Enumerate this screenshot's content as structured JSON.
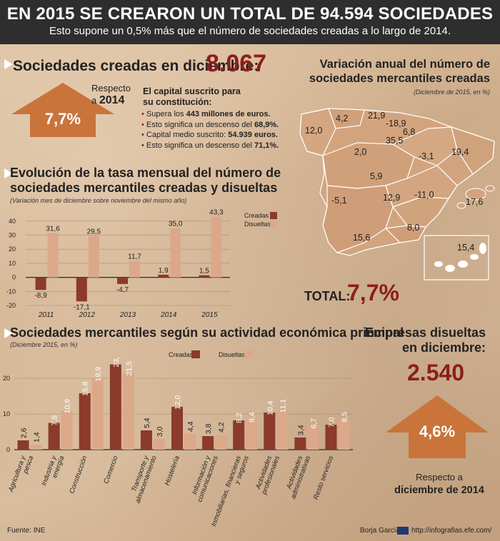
{
  "header": {
    "title": "EN 2015 SE CREARON UN TOTAL DE 94.594 SOCIEDADES",
    "subtitle": "Esto supone un 0,5% más que el número de sociedades creadas a lo largo de 2014."
  },
  "december": {
    "title": "Sociedades creadas en diciembre:",
    "value": "8.067",
    "respecto_line1": "Respecto",
    "respecto_prefix": "a",
    "respecto_year": "2014",
    "arrow_value": "7,7%",
    "capital_title_1": "El capital suscrito para",
    "capital_title_2": "su constitución:",
    "bullets": [
      {
        "pre": "Supera los ",
        "bold": "443 millones de euros."
      },
      {
        "pre": "Esto significa un descenso del ",
        "bold": "68,9%."
      },
      {
        "pre": "Capital medio suscrito: ",
        "bold": "54.939 euros."
      },
      {
        "pre": "Esto significa un descenso del ",
        "bold": "71,1%."
      }
    ]
  },
  "map": {
    "title_1": "Variación anual del número de",
    "title_2": "sociedades mercantiles creadas",
    "note": "(Diciembre de 2015, en %)",
    "labels": [
      "12,0",
      "4,2",
      "21,9",
      "-18,9",
      "6,8",
      "35,5",
      "2,0",
      "-3,1",
      "19,4",
      "5,9",
      "-5,1",
      "12,9",
      "-11,0",
      "17,6",
      "15,6",
      "8,0",
      "15,4"
    ],
    "total_label": "TOTAL:",
    "total_value": "7,7%"
  },
  "monthly_chart": {
    "title_1": "Evolución de la tasa mensual del número de",
    "title_2": "sociedades mercantiles creadas y disueltas",
    "note": "(Variación mes de diciembre sobre noviembre del mismo año)",
    "legend": [
      "Creadas",
      "Disueltas"
    ]
  },
  "activity_chart": {
    "title": "Sociedades mercantiles según su actividad económica principal",
    "note": "(Diciembre 2015, en %)",
    "legend": [
      "Creadas",
      "Disueltas"
    ]
  },
  "disueltas": {
    "title_1": "Empresas disueltas",
    "title_2": "en diciembre:",
    "value": "2.540",
    "arrow_value": "4,6%",
    "respecto_1": "Respecto a",
    "respecto_2": "diciembre de 2014"
  },
  "footer": {
    "source": "Fuente: INE",
    "author": "Borja García",
    "url": "http://infografias.efe.com/"
  },
  "colors": {
    "creadas": "#8b3a2b",
    "disueltas": "#dca88a",
    "arrow": "#c9743a",
    "accent_red": "#8b1e1e",
    "map_fill": "#d2a47e"
  },
  "chart_data": [
    {
      "type": "bar",
      "title": "Evolución de la tasa mensual del número de sociedades mercantiles creadas y disueltas",
      "categories": [
        "2011",
        "2012",
        "2013",
        "2014",
        "2015"
      ],
      "series": [
        {
          "name": "Creadas",
          "values": [
            -8.9,
            -17.1,
            -4.7,
            1.9,
            1.5
          ]
        },
        {
          "name": "Disueltas",
          "values": [
            31.6,
            29.5,
            11.7,
            35.0,
            43.3
          ]
        }
      ],
      "value_labels": {
        "Creadas": [
          "-8,9",
          "-17,1",
          "-4,7",
          "1,9",
          "1,5"
        ],
        "Disueltas": [
          "31,6",
          "29,5",
          "11,7",
          "35,0",
          "43,3"
        ]
      },
      "yticks": [
        40,
        30,
        20,
        10,
        0,
        -10,
        -20
      ],
      "ylim": [
        -20,
        45
      ],
      "legend": "top-right"
    },
    {
      "type": "bar",
      "title": "Sociedades mercantiles según su actividad económica principal",
      "categories": [
        "Agricultura y pesca",
        "Industria y energía",
        "Construcción",
        "Comercio",
        "Transporte y almacenamiento",
        "Hostelería",
        "Información y comunicaciones",
        "Inmobiliarias, financieras y seguros",
        "Actividades profesionales",
        "Actividades administrativas",
        "Resto servicios"
      ],
      "series": [
        {
          "name": "Creadas",
          "values": [
            2.6,
            7.5,
            15.8,
            23.9,
            5.4,
            12.0,
            3.8,
            8.2,
            10.4,
            3.4,
            7.0
          ]
        },
        {
          "name": "Disueltas",
          "values": [
            1.4,
            10.9,
            19.9,
            21.5,
            3.0,
            4.4,
            4.2,
            8.4,
            11.1,
            6.7,
            8.5
          ]
        }
      ],
      "value_labels": {
        "Creadas": [
          "2,6",
          "7,5",
          "15,8",
          "23,9",
          "5,4",
          "12,0",
          "3,8",
          "8,2",
          "10,4",
          "3,4",
          "7,0"
        ],
        "Disueltas": [
          "1,4",
          "10,9",
          "19,9",
          "21,5",
          "3,0",
          "4,4",
          "4,2",
          "8,4",
          "11,1",
          "6,7",
          "8,5"
        ]
      },
      "yticks": [
        20,
        10,
        0
      ],
      "ylim": [
        0,
        24
      ],
      "legend": "top-center"
    }
  ]
}
